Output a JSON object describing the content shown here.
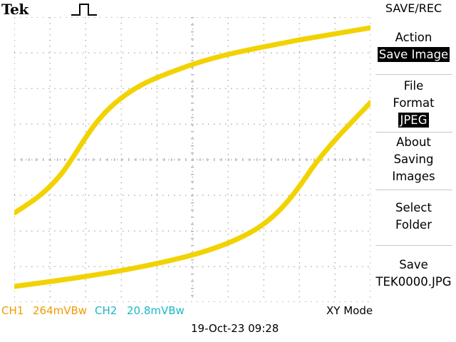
{
  "header": {
    "brand": "Tek"
  },
  "colors": {
    "trace": "#f2d200",
    "ch1": "#f29a00",
    "ch2": "#1cb8c4",
    "grid": "#b4b4b4"
  },
  "menu": {
    "title": "SAVE/REC",
    "action": {
      "label": "Action",
      "value": "Save Image"
    },
    "file_format": {
      "label_line1": "File",
      "label_line2": "Format",
      "value": "JPEG"
    },
    "about": {
      "line1": "About",
      "line2": "Saving",
      "line3": "Images"
    },
    "select_folder": {
      "line1": "Select",
      "line2": "Folder"
    },
    "save": {
      "line1": "Save",
      "line2": "TEK0000.JPG"
    }
  },
  "status": {
    "ch1_label": "CH1",
    "ch1_scale": "264mVBw",
    "ch2_label": "CH2",
    "ch2_scale": "20.8mVBw",
    "mode": "XY Mode",
    "datetime": "19-Oct-23 09:28"
  }
}
